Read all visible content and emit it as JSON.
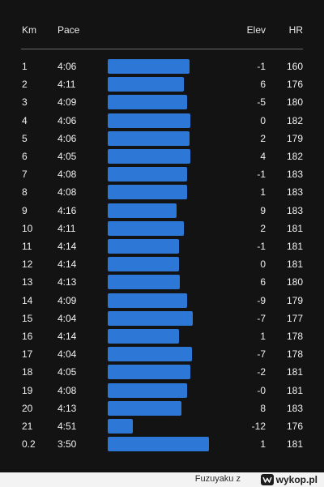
{
  "splits": {
    "headers": {
      "km": "Km",
      "pace": "Pace",
      "elev": "Elev",
      "hr": "HR"
    },
    "bar_color": "#2d77d6",
    "rows": [
      {
        "km": "1",
        "pace": "4:06",
        "elev": "-1",
        "hr": "160",
        "pace_level": 0.71
      },
      {
        "km": "2",
        "pace": "4:11",
        "elev": "6",
        "hr": "176",
        "pace_level": 0.66
      },
      {
        "km": "3",
        "pace": "4:09",
        "elev": "-5",
        "hr": "180",
        "pace_level": 0.69
      },
      {
        "km": "4",
        "pace": "4:06",
        "elev": "0",
        "hr": "182",
        "pace_level": 0.72
      },
      {
        "km": "5",
        "pace": "4:06",
        "elev": "2",
        "hr": "179",
        "pace_level": 0.71
      },
      {
        "km": "6",
        "pace": "4:05",
        "elev": "4",
        "hr": "182",
        "pace_level": 0.72
      },
      {
        "km": "7",
        "pace": "4:08",
        "elev": "-1",
        "hr": "183",
        "pace_level": 0.69
      },
      {
        "km": "8",
        "pace": "4:08",
        "elev": "1",
        "hr": "183",
        "pace_level": 0.69
      },
      {
        "km": "9",
        "pace": "4:16",
        "elev": "9",
        "hr": "183",
        "pace_level": 0.6
      },
      {
        "km": "10",
        "pace": "4:11",
        "elev": "2",
        "hr": "181",
        "pace_level": 0.66
      },
      {
        "km": "11",
        "pace": "4:14",
        "elev": "-1",
        "hr": "181",
        "pace_level": 0.62
      },
      {
        "km": "12",
        "pace": "4:14",
        "elev": "0",
        "hr": "181",
        "pace_level": 0.62
      },
      {
        "km": "13",
        "pace": "4:13",
        "elev": "6",
        "hr": "180",
        "pace_level": 0.63
      },
      {
        "km": "14",
        "pace": "4:09",
        "elev": "-9",
        "hr": "179",
        "pace_level": 0.69
      },
      {
        "km": "15",
        "pace": "4:04",
        "elev": "-7",
        "hr": "177",
        "pace_level": 0.74
      },
      {
        "km": "16",
        "pace": "4:14",
        "elev": "1",
        "hr": "178",
        "pace_level": 0.62
      },
      {
        "km": "17",
        "pace": "4:04",
        "elev": "-7",
        "hr": "178",
        "pace_level": 0.73
      },
      {
        "km": "18",
        "pace": "4:05",
        "elev": "-2",
        "hr": "181",
        "pace_level": 0.72
      },
      {
        "km": "19",
        "pace": "4:08",
        "elev": "-0",
        "hr": "181",
        "pace_level": 0.69
      },
      {
        "km": "20",
        "pace": "4:13",
        "elev": "8",
        "hr": "183",
        "pace_level": 0.64
      },
      {
        "km": "21",
        "pace": "4:51",
        "elev": "-12",
        "hr": "176",
        "pace_level": 0.22
      },
      {
        "km": "0.2",
        "pace": "3:50",
        "elev": "1",
        "hr": "181",
        "pace_level": 0.88
      }
    ]
  },
  "footer": {
    "user": "Fuzuyaku",
    "via": "z",
    "brand": "wykop.pl"
  }
}
